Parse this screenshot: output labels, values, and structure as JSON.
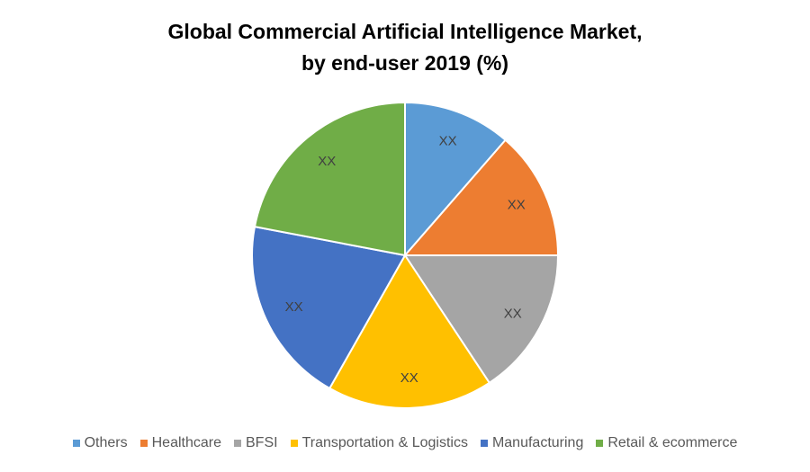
{
  "chart_data": {
    "type": "pie",
    "title": [
      "Global Commercial Artificial Intelligence Market,",
      "by end-user 2019 (%)"
    ],
    "categories": [
      "Others",
      "Healthcare",
      "BFSI",
      "Transportation & Logistics",
      "Manufacturing",
      "Retail & ecommerce"
    ],
    "values": [
      11.4,
      13.6,
      15.7,
      17.5,
      19.8,
      22.0
    ],
    "data_labels": [
      "XX",
      "XX",
      "XX",
      "XX",
      "XX",
      "XX"
    ],
    "colors": [
      "#5B9BD5",
      "#ED7D31",
      "#A5A5A5",
      "#FFC000",
      "#4472C4",
      "#70AD47"
    ],
    "start_angle": "top, clockwise",
    "legend": "bottom"
  }
}
